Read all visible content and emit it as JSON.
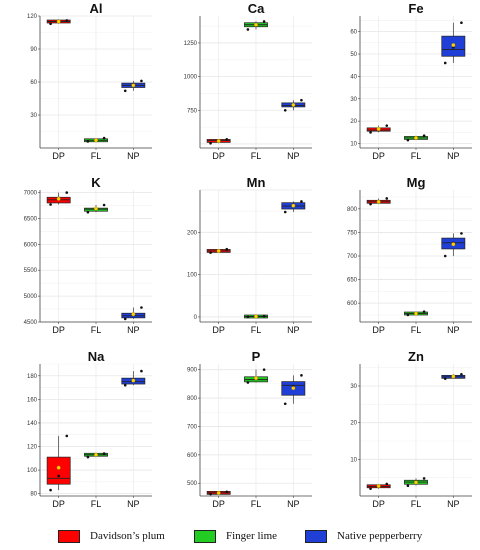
{
  "chart_data": [
    {
      "type": "box",
      "title": "Al",
      "categories": [
        "DP",
        "FL",
        "NP"
      ],
      "ylim": [
        0,
        120
      ],
      "yticks": [
        30,
        60,
        90,
        120
      ],
      "boxes": [
        {
          "category": "DP",
          "min": 113,
          "q1": 114,
          "median": 115,
          "q3": 116,
          "max": 117,
          "mean": 115,
          "points": [
            113,
            115,
            116
          ]
        },
        {
          "category": "FL",
          "min": 6,
          "q1": 6.5,
          "median": 7,
          "q3": 7.5,
          "max": 9,
          "mean": 7,
          "points": [
            6,
            7,
            9
          ]
        },
        {
          "category": "NP",
          "min": 52,
          "q1": 55,
          "median": 57,
          "q3": 59,
          "max": 61,
          "mean": 57,
          "points": [
            52,
            58,
            61
          ]
        }
      ]
    },
    {
      "type": "box",
      "title": "Ca",
      "categories": [
        "DP",
        "FL",
        "NP"
      ],
      "ylim": [
        470,
        1450
      ],
      "yticks": [
        750,
        1000,
        1250
      ],
      "boxes": [
        {
          "category": "DP",
          "min": 505,
          "q1": 515,
          "median": 525,
          "q3": 530,
          "max": 535,
          "mean": 522,
          "points": [
            505,
            525,
            535
          ]
        },
        {
          "category": "FL",
          "min": 1350,
          "q1": 1370,
          "median": 1385,
          "q3": 1400,
          "max": 1410,
          "mean": 1385,
          "points": [
            1350,
            1390,
            1410
          ]
        },
        {
          "category": "NP",
          "min": 750,
          "q1": 775,
          "median": 785,
          "q3": 805,
          "max": 825,
          "mean": 790,
          "points": [
            750,
            790,
            825
          ]
        }
      ]
    },
    {
      "type": "box",
      "title": "Fe",
      "categories": [
        "DP",
        "FL",
        "NP"
      ],
      "ylim": [
        8,
        67
      ],
      "yticks": [
        10,
        20,
        30,
        40,
        50,
        60
      ],
      "boxes": [
        {
          "category": "DP",
          "min": 15,
          "q1": 15.5,
          "median": 16,
          "q3": 17,
          "max": 18,
          "mean": 16.5,
          "points": [
            15,
            16.5,
            18
          ]
        },
        {
          "category": "FL",
          "min": 11.5,
          "q1": 12,
          "median": 12.5,
          "q3": 13,
          "max": 13.5,
          "mean": 12.5,
          "points": [
            11.5,
            12.5,
            13.5
          ]
        },
        {
          "category": "NP",
          "min": 46,
          "q1": 49,
          "median": 52,
          "q3": 58,
          "max": 64,
          "mean": 54,
          "points": [
            46,
            53,
            64
          ]
        }
      ]
    },
    {
      "type": "box",
      "title": "K",
      "categories": [
        "DP",
        "FL",
        "NP"
      ],
      "ylim": [
        4500,
        7050
      ],
      "yticks": [
        4500,
        5000,
        5500,
        6000,
        6500,
        7000
      ],
      "boxes": [
        {
          "category": "DP",
          "min": 6770,
          "q1": 6800,
          "median": 6860,
          "q3": 6910,
          "max": 7000,
          "mean": 6880,
          "points": [
            6770,
            6880,
            7000
          ]
        },
        {
          "category": "FL",
          "min": 6620,
          "q1": 6640,
          "median": 6680,
          "q3": 6700,
          "max": 6760,
          "mean": 6690,
          "points": [
            6620,
            6690,
            6760
          ]
        },
        {
          "category": "NP",
          "min": 4560,
          "q1": 4580,
          "median": 4620,
          "q3": 4670,
          "max": 4780,
          "mean": 4650,
          "points": [
            4560,
            4640,
            4780
          ]
        }
      ]
    },
    {
      "type": "box",
      "title": "Mn",
      "categories": [
        "DP",
        "FL",
        "NP"
      ],
      "ylim": [
        -12,
        300
      ],
      "yticks": [
        0,
        100,
        200
      ],
      "boxes": [
        {
          "category": "DP",
          "min": 152,
          "q1": 154,
          "median": 156,
          "q3": 158,
          "max": 160,
          "mean": 156,
          "points": [
            152,
            157,
            160
          ]
        },
        {
          "category": "FL",
          "min": 0,
          "q1": 0.5,
          "median": 1,
          "q3": 1.5,
          "max": 2,
          "mean": 1,
          "points": [
            0,
            1,
            2
          ]
        },
        {
          "category": "NP",
          "min": 248,
          "q1": 255,
          "median": 262,
          "q3": 270,
          "max": 273,
          "mean": 263,
          "points": [
            248,
            265,
            273
          ]
        }
      ]
    },
    {
      "type": "box",
      "title": "Mg",
      "categories": [
        "DP",
        "FL",
        "NP"
      ],
      "ylim": [
        560,
        840
      ],
      "yticks": [
        600,
        650,
        700,
        750,
        800
      ],
      "boxes": [
        {
          "category": "DP",
          "min": 810,
          "q1": 812,
          "median": 815,
          "q3": 818,
          "max": 822,
          "mean": 815,
          "points": [
            810,
            816,
            822
          ]
        },
        {
          "category": "FL",
          "min": 575,
          "q1": 576,
          "median": 578,
          "q3": 580,
          "max": 582,
          "mean": 578,
          "points": [
            575,
            578,
            582
          ]
        },
        {
          "category": "NP",
          "min": 700,
          "q1": 715,
          "median": 728,
          "q3": 738,
          "max": 748,
          "mean": 725,
          "points": [
            700,
            728,
            748
          ]
        }
      ]
    },
    {
      "type": "box",
      "title": "Na",
      "categories": [
        "DP",
        "FL",
        "NP"
      ],
      "ylim": [
        78,
        190
      ],
      "yticks": [
        80,
        100,
        120,
        140,
        160,
        180
      ],
      "boxes": [
        {
          "category": "DP",
          "min": 83,
          "q1": 88,
          "median": 93,
          "q3": 111,
          "max": 129,
          "mean": 102,
          "points": [
            83,
            95,
            129
          ]
        },
        {
          "category": "FL",
          "min": 111,
          "q1": 112,
          "median": 113,
          "q3": 114,
          "max": 114,
          "mean": 113,
          "points": [
            111,
            113,
            114
          ]
        },
        {
          "category": "NP",
          "min": 172,
          "q1": 173,
          "median": 175,
          "q3": 178,
          "max": 184,
          "mean": 176,
          "points": [
            172,
            176,
            184
          ]
        }
      ]
    },
    {
      "type": "box",
      "title": "P",
      "categories": [
        "DP",
        "FL",
        "NP"
      ],
      "ylim": [
        455,
        920
      ],
      "yticks": [
        500,
        600,
        700,
        800,
        900
      ],
      "boxes": [
        {
          "category": "DP",
          "min": 462,
          "q1": 464,
          "median": 466,
          "q3": 468,
          "max": 470,
          "mean": 466,
          "points": [
            462,
            466,
            470
          ]
        },
        {
          "category": "FL",
          "min": 855,
          "q1": 857,
          "median": 865,
          "q3": 875,
          "max": 900,
          "mean": 870,
          "points": [
            855,
            868,
            900
          ]
        },
        {
          "category": "NP",
          "min": 780,
          "q1": 810,
          "median": 845,
          "q3": 858,
          "max": 880,
          "mean": 835,
          "points": [
            780,
            840,
            880
          ]
        }
      ]
    },
    {
      "type": "box",
      "title": "Zn",
      "categories": [
        "DP",
        "FL",
        "NP"
      ],
      "ylim": [
        0,
        36
      ],
      "yticks": [
        10,
        20,
        30
      ],
      "boxes": [
        {
          "category": "DP",
          "min": 2,
          "q1": 2.3,
          "median": 2.6,
          "q3": 3,
          "max": 3.3,
          "mean": 2.7,
          "points": [
            2,
            2.7,
            3.3
          ]
        },
        {
          "category": "FL",
          "min": 2.8,
          "q1": 3.2,
          "median": 3.8,
          "q3": 4.3,
          "max": 4.8,
          "mean": 3.7,
          "points": [
            2.8,
            3.7,
            4.8
          ]
        },
        {
          "category": "NP",
          "min": 32,
          "q1": 32.2,
          "median": 32.5,
          "q3": 32.8,
          "max": 33.2,
          "mean": 32.6,
          "points": [
            32,
            32.5,
            33.2
          ]
        }
      ]
    }
  ],
  "legend": [
    {
      "label": "Davidson’s plum",
      "color": "#ff0000"
    },
    {
      "label": "Finger lime",
      "color": "#22cc22"
    },
    {
      "label": "Native pepperberry",
      "color": "#1f3fd6"
    }
  ],
  "colors": {
    "DP": "#ff0000",
    "FL": "#22cc22",
    "NP": "#1f3fd6",
    "mean_marker": "#ffd400"
  }
}
